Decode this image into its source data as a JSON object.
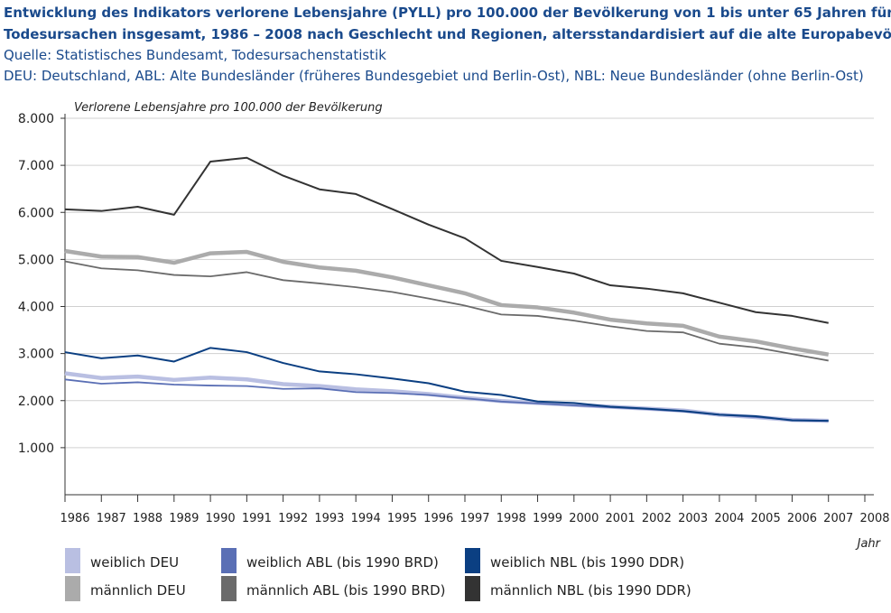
{
  "chart_data": {
    "type": "line",
    "title": [
      "Entwicklung des Indikators verlorene Lebensjahre (PYLL) pro 100.000 der Bevölkerung von 1 bis unter 65 Jahren für alle",
      "Todesursachen insgesamt, 1986 – 2008 nach Geschlecht und Regionen, altersstandardisiert auf die alte Europabevölkerung"
    ],
    "subtitle": [
      "Quelle: Statistisches Bundesamt, Todesursachenstatistik",
      "DEU: Deutschland, ABL: Alte Bundesländer (früheres Bundesgebiet und Berlin-Ost), NBL: Neue Bundesländer (ohne Berlin-Ost)"
    ],
    "y_label": "Verlorene Lebensjahre pro 100.000 der Bevölkerung",
    "x_label": "Jahr",
    "x": [
      1986,
      1987,
      1988,
      1989,
      1990,
      1991,
      1992,
      1993,
      1994,
      1995,
      1996,
      1997,
      1998,
      1999,
      2000,
      2001,
      2002,
      2003,
      2004,
      2005,
      2006,
      2007
    ],
    "xlim": [
      1986,
      2008
    ],
    "xticks": [
      1986,
      1987,
      1988,
      1989,
      1990,
      1991,
      1992,
      1993,
      1994,
      1995,
      1996,
      1997,
      1998,
      1999,
      2000,
      2001,
      2002,
      2003,
      2004,
      2005,
      2006,
      2007,
      2008
    ],
    "ylim": [
      0,
      8000
    ],
    "yticks": [
      {
        "value": 1000,
        "label": "1.000"
      },
      {
        "value": 2000,
        "label": "2.000"
      },
      {
        "value": 3000,
        "label": "3.000"
      },
      {
        "value": 4000,
        "label": "4.000"
      },
      {
        "value": 5000,
        "label": "5.000"
      },
      {
        "value": 6000,
        "label": "6.000"
      },
      {
        "value": 7000,
        "label": "7.000"
      },
      {
        "value": 8000,
        "label": "8.000"
      }
    ],
    "grid": true,
    "series": [
      {
        "name": "weiblich DEU",
        "color": "#b9bfe2",
        "width": 4.5,
        "values": [
          2580,
          2480,
          2510,
          2440,
          2490,
          2450,
          2350,
          2310,
          2240,
          2200,
          2140,
          2060,
          1990,
          1950,
          1910,
          1870,
          1830,
          1790,
          1700,
          1650,
          1590,
          1570
        ]
      },
      {
        "name": "weiblich ABL (bis 1990 BRD)",
        "color": "#5a6fb5",
        "width": 1.8,
        "values": [
          2450,
          2360,
          2390,
          2340,
          2320,
          2310,
          2250,
          2260,
          2180,
          2160,
          2120,
          2050,
          1980,
          1940,
          1900,
          1860,
          1820,
          1770,
          1700,
          1650,
          1590,
          1570
        ]
      },
      {
        "name": "weiblich NBL (bis 1990 DDR)",
        "color": "#0b3f82",
        "width": 2,
        "values": [
          3030,
          2900,
          2960,
          2830,
          3120,
          3030,
          2800,
          2620,
          2560,
          2470,
          2370,
          2190,
          2120,
          1980,
          1950,
          1870,
          1830,
          1780,
          1700,
          1670,
          1580,
          1570
        ]
      },
      {
        "name": "männlich DEU",
        "color": "#ababab",
        "width": 4.5,
        "values": [
          5180,
          5060,
          5050,
          4930,
          5130,
          5160,
          4950,
          4830,
          4760,
          4620,
          4450,
          4280,
          4030,
          3980,
          3870,
          3720,
          3640,
          3590,
          3360,
          3260,
          3110,
          2980
        ]
      },
      {
        "name": "männlich ABL (bis 1990 BRD)",
        "color": "#6b6b6b",
        "width": 1.8,
        "values": [
          4960,
          4810,
          4770,
          4670,
          4640,
          4730,
          4560,
          4490,
          4410,
          4310,
          4170,
          4020,
          3830,
          3800,
          3700,
          3580,
          3480,
          3450,
          3210,
          3130,
          2990,
          2850
        ]
      },
      {
        "name": "männlich NBL (bis 1990 DDR)",
        "color": "#333333",
        "width": 2,
        "values": [
          6065,
          6030,
          6120,
          5950,
          7080,
          7160,
          6780,
          6490,
          6390,
          6070,
          5740,
          5450,
          4970,
          4840,
          4700,
          4450,
          4380,
          4280,
          4080,
          3880,
          3800,
          3650
        ]
      }
    ]
  }
}
